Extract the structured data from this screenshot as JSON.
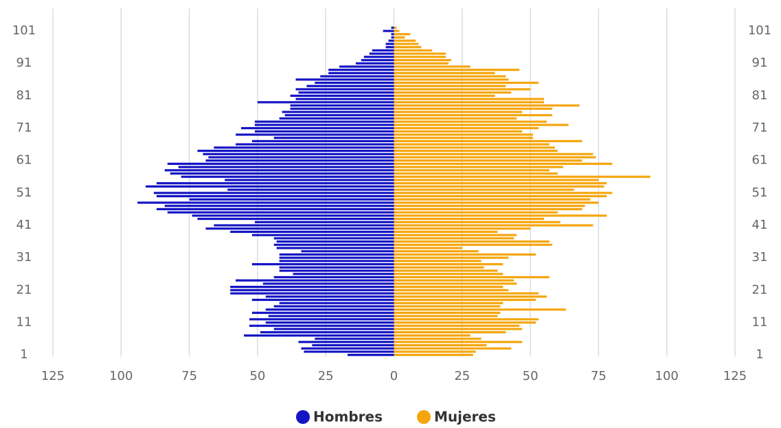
{
  "chart_data": {
    "type": "pyramid",
    "categories": [
      1,
      null,
      null,
      null,
      null,
      null,
      null,
      null,
      null,
      null,
      11,
      null,
      null,
      null,
      null,
      null,
      null,
      null,
      null,
      null,
      21,
      null,
      null,
      null,
      null,
      null,
      null,
      null,
      null,
      null,
      31,
      null,
      null,
      null,
      null,
      null,
      null,
      null,
      null,
      null,
      41,
      null,
      null,
      null,
      null,
      null,
      null,
      null,
      null,
      null,
      51,
      null,
      null,
      null,
      null,
      null,
      null,
      null,
      null,
      null,
      61,
      null,
      null,
      null,
      null,
      null,
      null,
      null,
      null,
      null,
      71,
      null,
      null,
      null,
      null,
      null,
      null,
      null,
      null,
      null,
      81,
      null,
      null,
      null,
      null,
      null,
      null,
      null,
      null,
      null,
      91,
      null,
      null,
      null,
      null,
      null,
      null,
      null,
      null,
      null,
      101,
      null
    ],
    "series": [
      {
        "name": "Hombres",
        "color": "#1414c4",
        "values": [
          -17,
          -33,
          -34,
          -30,
          -35,
          -29,
          -55,
          -49,
          -44,
          -53,
          -47,
          -53,
          -46,
          -52,
          -47,
          -44,
          -42,
          -52,
          -47,
          -60,
          -60,
          -60,
          -48,
          -58,
          -44,
          -37,
          -42,
          -42,
          -52,
          -42,
          -42,
          -42,
          -34,
          -43,
          -44,
          -43,
          -44,
          -52,
          -60,
          -69,
          -66,
          -51,
          -72,
          -74,
          -83,
          -87,
          -84,
          -94,
          -75,
          -87,
          -88,
          -61,
          -91,
          -87,
          -62,
          -78,
          -82,
          -84,
          -79,
          -83,
          -69,
          -68,
          -70,
          -72,
          -66,
          -58,
          -52,
          -44,
          -58,
          -51,
          -56,
          -51,
          -51,
          -42,
          -40,
          -41,
          -38,
          -38,
          -50,
          -36,
          -38,
          -35,
          -36,
          -32,
          -29,
          -36,
          -27,
          -24,
          -24,
          -20,
          -14,
          -12,
          -11,
          -9,
          -8,
          -3,
          -3,
          -2,
          -1,
          -1,
          -4,
          -1
        ]
      },
      {
        "name": "Mujeres",
        "color": "#f5a60c",
        "values": [
          29,
          30,
          43,
          34,
          47,
          32,
          28,
          41,
          47,
          46,
          52,
          53,
          38,
          39,
          63,
          39,
          40,
          52,
          56,
          53,
          42,
          40,
          45,
          44,
          57,
          40,
          38,
          33,
          40,
          32,
          42,
          52,
          31,
          25,
          58,
          57,
          44,
          45,
          38,
          50,
          73,
          61,
          55,
          78,
          60,
          69,
          70,
          75,
          72,
          78,
          80,
          66,
          77,
          78,
          75,
          94,
          60,
          57,
          62,
          80,
          69,
          74,
          73,
          60,
          59,
          57,
          69,
          51,
          51,
          47,
          53,
          64,
          56,
          45,
          58,
          47,
          58,
          68,
          55,
          55,
          37,
          43,
          50,
          41,
          53,
          42,
          41,
          37,
          46,
          28,
          20,
          21,
          19,
          19,
          14,
          10,
          9,
          8,
          4,
          6,
          2,
          1
        ]
      }
    ],
    "xlim": [
      -125,
      125
    ],
    "xticks": [
      {
        "value": -125,
        "label": "125"
      },
      {
        "value": -100,
        "label": "100"
      },
      {
        "value": -75,
        "label": "75"
      },
      {
        "value": -50,
        "label": "50"
      },
      {
        "value": -25,
        "label": "25"
      },
      0,
      25,
      50,
      75,
      100,
      125
    ],
    "grid": true
  }
}
